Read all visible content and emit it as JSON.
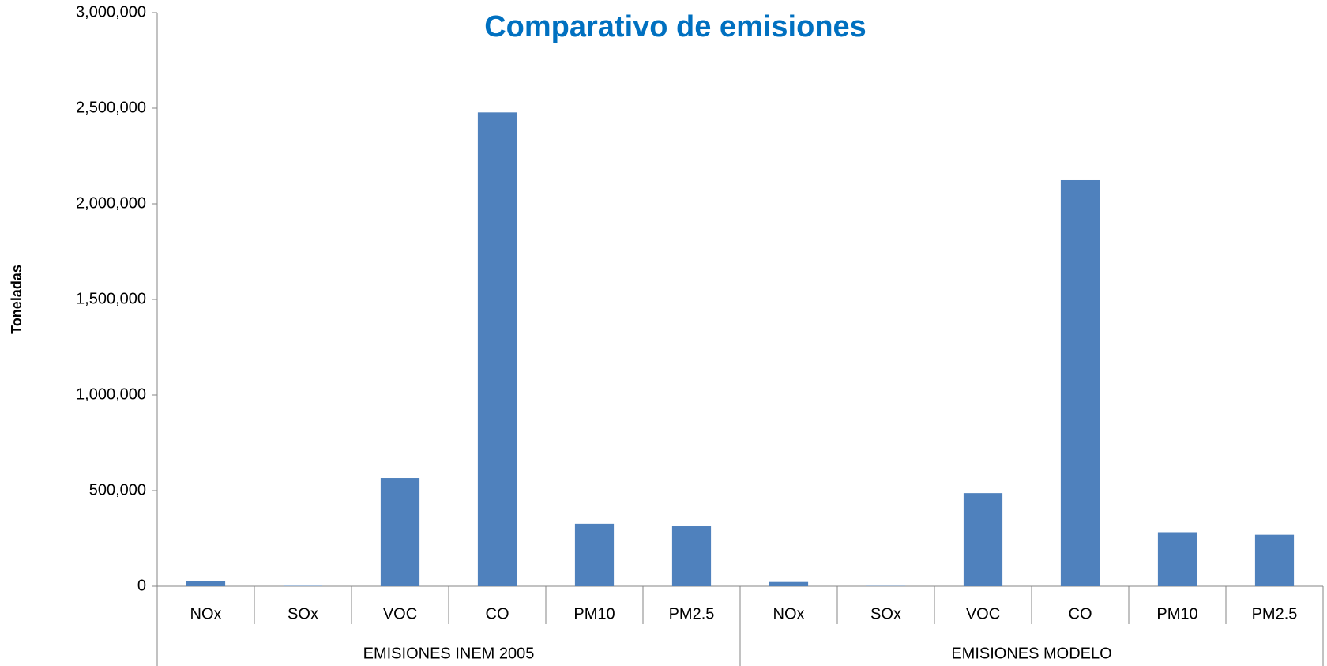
{
  "chart_data": {
    "type": "bar",
    "title": "Comparativo de emisiones",
    "y_label": "Toneladas",
    "color": "#4f81bd",
    "groups": [
      {
        "name": "EMISIONES INEM 2005",
        "categories": [
          "NOx",
          "SOx",
          "VOC",
          "CO",
          "PM10",
          "PM2.5"
        ],
        "values": [
          28000,
          2000,
          566000,
          2478000,
          327000,
          314000
        ]
      },
      {
        "name": "EMISIONES MODELO",
        "categories": [
          "NOx",
          "SOx",
          "VOC",
          "CO",
          "PM10",
          "PM2.5"
        ],
        "values": [
          22000,
          1500,
          487000,
          2124000,
          279000,
          270000
        ]
      }
    ],
    "ylim": [
      0,
      3000000
    ],
    "yticks": [
      0,
      {
        "value": 500000,
        "label": "500,000"
      },
      {
        "value": 1000000,
        "label": "1,000,000"
      },
      {
        "value": 1500000,
        "label": "1,500,000"
      },
      {
        "value": 2000000,
        "label": "2,000,000"
      },
      {
        "value": 2500000,
        "label": "2,500,000"
      },
      {
        "value": 3000000,
        "label": "3,000,000"
      }
    ],
    "grid": false
  }
}
